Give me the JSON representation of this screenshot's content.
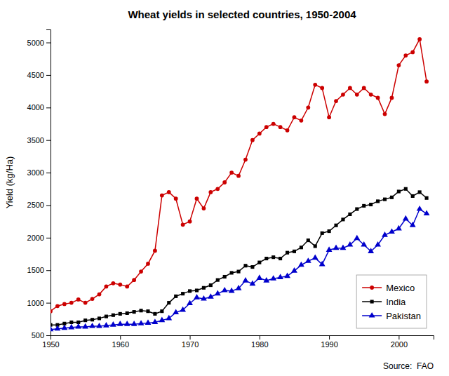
{
  "chart_data": {
    "type": "line",
    "title": "Wheat yields in selected countries, 1950-2004",
    "ylabel": "Yield (kg/Ha)",
    "annotation": "Source:  FAO",
    "x": [
      1950,
      1951,
      1952,
      1953,
      1954,
      1955,
      1956,
      1957,
      1958,
      1959,
      1960,
      1961,
      1962,
      1963,
      1964,
      1965,
      1966,
      1967,
      1968,
      1969,
      1970,
      1971,
      1972,
      1973,
      1974,
      1975,
      1976,
      1977,
      1978,
      1979,
      1980,
      1981,
      1982,
      1983,
      1984,
      1985,
      1986,
      1987,
      1988,
      1989,
      1990,
      1991,
      1992,
      1993,
      1994,
      1995,
      1996,
      1997,
      1998,
      1999,
      2000,
      2001,
      2002,
      2003,
      2004
    ],
    "xlim": [
      1950,
      2005
    ],
    "xticks": [
      1950,
      1960,
      1970,
      1980,
      1990,
      2000
    ],
    "ylim": [
      500,
      5200
    ],
    "yticks": [
      500,
      1000,
      1500,
      2000,
      2500,
      3000,
      3500,
      4000,
      4500,
      5000
    ],
    "grid": false,
    "legend": "lower right",
    "series": [
      {
        "name": "Mexico",
        "color": "#cc0000",
        "marker": "circle",
        "values": [
          870,
          950,
          980,
          1000,
          1050,
          1000,
          1060,
          1130,
          1250,
          1300,
          1280,
          1250,
          1350,
          1480,
          1600,
          1800,
          2650,
          2700,
          2600,
          2200,
          2250,
          2600,
          2450,
          2700,
          2750,
          2850,
          3000,
          2950,
          3200,
          3500,
          3600,
          3700,
          3750,
          3700,
          3650,
          3850,
          3800,
          4000,
          4350,
          4300,
          3850,
          4100,
          4200,
          4300,
          4200,
          4300,
          4200,
          4150,
          3900,
          4150,
          4650,
          4800,
          4850,
          5050,
          4400
        ]
      },
      {
        "name": "India",
        "color": "#000000",
        "marker": "square",
        "values": [
          660,
          660,
          680,
          700,
          700,
          730,
          740,
          760,
          790,
          810,
          830,
          840,
          860,
          880,
          870,
          830,
          870,
          1000,
          1100,
          1140,
          1180,
          1190,
          1230,
          1270,
          1350,
          1400,
          1460,
          1480,
          1570,
          1550,
          1620,
          1680,
          1700,
          1680,
          1770,
          1790,
          1850,
          1960,
          1870,
          2070,
          2100,
          2190,
          2280,
          2360,
          2440,
          2490,
          2510,
          2560,
          2590,
          2620,
          2710,
          2750,
          2640,
          2700,
          2610
        ]
      },
      {
        "name": "Pakistan",
        "color": "#0000cc",
        "marker": "triangle",
        "values": [
          590,
          600,
          610,
          620,
          630,
          630,
          640,
          640,
          650,
          660,
          670,
          670,
          670,
          680,
          690,
          700,
          730,
          760,
          850,
          890,
          990,
          1080,
          1060,
          1090,
          1140,
          1190,
          1180,
          1220,
          1340,
          1290,
          1380,
          1340,
          1370,
          1390,
          1410,
          1490,
          1580,
          1640,
          1690,
          1590,
          1810,
          1840,
          1840,
          1890,
          1990,
          1890,
          1790,
          1890,
          2040,
          2090,
          2140,
          2290,
          2190,
          2440,
          2370
        ]
      }
    ]
  }
}
